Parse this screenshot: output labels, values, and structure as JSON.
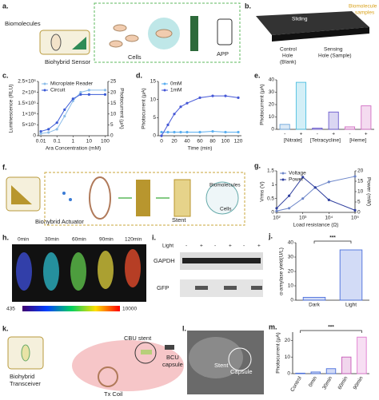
{
  "panel_letters": {
    "a": "a.",
    "b": "b.",
    "c": "c.",
    "d": "d.",
    "e": "e.",
    "f": "f.",
    "g": "g.",
    "h": "h.",
    "i": "i.",
    "j": "j.",
    "k": "k.",
    "l": "l.",
    "m": "m."
  },
  "panel_a": {
    "biomolecules": "Biomolecules",
    "sensor": "Biohybrid Sensor",
    "cells": "Cells",
    "app": "APP"
  },
  "panel_b": {
    "sliding": "Sliding",
    "samples": [
      "Biomolecule",
      "samples"
    ],
    "control": [
      "Control",
      "Hole",
      "(Blank)"
    ],
    "sensing": [
      "Sensing",
      "Hole (Sample)"
    ]
  },
  "panel_f": {
    "actuator": "Biohybrid Actuator",
    "stent": "Stent",
    "biomolecules": "Biomolecules",
    "cells": "Cells"
  },
  "panel_h": {
    "times": [
      "0min",
      "30min",
      "60min",
      "90min",
      "120min"
    ],
    "colorbar": {
      "min": 435,
      "max": 10000
    }
  },
  "panel_i": {
    "light": "Light",
    "signs": [
      "-",
      "+",
      "-",
      "+",
      "-",
      "+"
    ],
    "rows": [
      "GAPDH",
      "GFP"
    ]
  },
  "panel_k": {
    "transceiver": [
      "Biohybrid",
      "Transceiver"
    ],
    "cbu": "CBU stent",
    "bcu": [
      "BCU",
      "capsule"
    ],
    "coil": "Tx Coil"
  },
  "panel_l": {
    "stent": "Stent",
    "capsule": "Capsule"
  },
  "chart_data": [
    {
      "type": "line",
      "xscale": "log",
      "xlabel": "Ara Concentration (mM)",
      "ylabel": "Luminescence (RLU)",
      "y2label": "Photocurrent (μA)",
      "x": [
        0.01,
        0.03,
        0.1,
        0.3,
        1,
        3,
        10,
        100
      ],
      "xlim": [
        0.007,
        150
      ],
      "xticks": [
        0.01,
        0.1,
        1,
        10,
        100
      ],
      "ylim": [
        0,
        2500000
      ],
      "yticks": [
        0,
        {
          "value": 500000,
          "label": "5×10⁵"
        },
        {
          "value": 1000000,
          "label": "1×10⁶"
        },
        {
          "value": 1500000,
          "label": "1.5×10⁶"
        },
        {
          "value": 2000000,
          "label": "2×10⁶"
        },
        {
          "value": 2500000,
          "label": "2.5×10⁶"
        }
      ],
      "y2lim": [
        0,
        25
      ],
      "y2ticks": [
        0,
        5,
        10,
        15,
        20,
        25
      ],
      "legend": "upper left",
      "series": [
        {
          "name": "Microplate Reader",
          "color": "#8cbde9",
          "values": [
            100000,
            150000,
            300000,
            900000,
            1600000,
            2000000,
            2100000,
            2100000
          ]
        },
        {
          "name": "Circuit",
          "color": "#3b5bd6",
          "axis": "y2",
          "values": [
            2,
            3,
            6,
            12,
            17,
            19,
            19,
            19
          ]
        }
      ]
    },
    {
      "type": "line",
      "xlabel": "Time (min)",
      "ylabel": "Photocurrent (μA)",
      "x": [
        0,
        10,
        20,
        30,
        40,
        60,
        80,
        100,
        120
      ],
      "xlim": [
        -5,
        125
      ],
      "xticks": [
        0,
        20,
        40,
        60,
        80,
        100,
        120
      ],
      "ylim": [
        0,
        15
      ],
      "yticks": [
        0,
        5,
        10,
        15
      ],
      "legend": "upper left",
      "series": [
        {
          "name": "0mM",
          "color": "#5aaef0",
          "values": [
            1,
            1,
            1,
            1,
            1,
            1,
            1.2,
            1,
            1
          ]
        },
        {
          "name": "1mM",
          "color": "#4557d6",
          "values": [
            0,
            3,
            6,
            8,
            9,
            10.5,
            11,
            11,
            10.5
          ]
        }
      ]
    },
    {
      "type": "bar",
      "ylabel": "Photocurrent (μA)",
      "categories": [
        "-",
        "+",
        "-",
        "+",
        "-",
        "+"
      ],
      "groups": [
        "[Nitrate]",
        "[Tetracycline]",
        "[Heme]"
      ],
      "values": [
        4,
        38,
        1,
        14,
        2,
        19
      ],
      "colors": [
        "#6fa8dc",
        "#4fbfe0",
        "#6a5acd",
        "#6a5acd",
        "#d26fc4",
        "#d26fc4"
      ],
      "ylim": [
        0,
        40
      ],
      "yticks": [
        0,
        10,
        20,
        30,
        40
      ]
    },
    {
      "type": "line",
      "xscale": "log",
      "xlabel": "Load resistance (Ω)",
      "ylabel": "Vrms (V)",
      "y2label": "Power (mW)",
      "x": [
        100,
        300,
        1000,
        3000,
        10000,
        100000
      ],
      "xlim": [
        100,
        100000
      ],
      "xticks": [
        {
          "value": 100,
          "label": "10²"
        },
        {
          "value": 1000,
          "label": "10³"
        },
        {
          "value": 10000,
          "label": "10⁴"
        },
        {
          "value": 100000,
          "label": "10⁵"
        }
      ],
      "ylim": [
        0,
        1.5
      ],
      "yticks": [
        0,
        0.5,
        1,
        1.5
      ],
      "y2lim": [
        0,
        20
      ],
      "y2ticks": [
        0,
        5,
        10,
        15,
        20
      ],
      "legend": "upper left",
      "series": [
        {
          "name": "Voltage",
          "color": "#6d86c9",
          "values": [
            0.05,
            0.15,
            0.5,
            0.9,
            1.1,
            1.3
          ]
        },
        {
          "name": "Power",
          "color": "#2f3f9e",
          "axis": "y2",
          "values": [
            2,
            8,
            17,
            12,
            6,
            1
          ]
        }
      ]
    },
    {
      "type": "bar",
      "ylabel": "α-amylase yield(U/L)",
      "annotation": "***",
      "categories": [
        "Dark",
        "Light"
      ],
      "values": [
        2,
        35
      ],
      "colors": [
        "#4a6fdc",
        "#4a6fdc"
      ],
      "ylim": [
        0,
        40
      ],
      "yticks": [
        0,
        10,
        20,
        30,
        40
      ]
    },
    {
      "type": "bar",
      "ylabel": "Photocurrent (μA)",
      "annotation": "***",
      "rotate_labels": true,
      "categories": [
        "Control",
        "0min",
        "30min",
        "60min",
        "90min"
      ],
      "values": [
        0.3,
        1,
        3,
        10,
        22
      ],
      "colors": [
        "#4a6fdc",
        "#4a6fdc",
        "#4a6fdc",
        "#c85ab8",
        "#e07ad0"
      ],
      "ylim": [
        0,
        25
      ],
      "yticks": [
        0,
        10,
        20
      ]
    }
  ]
}
